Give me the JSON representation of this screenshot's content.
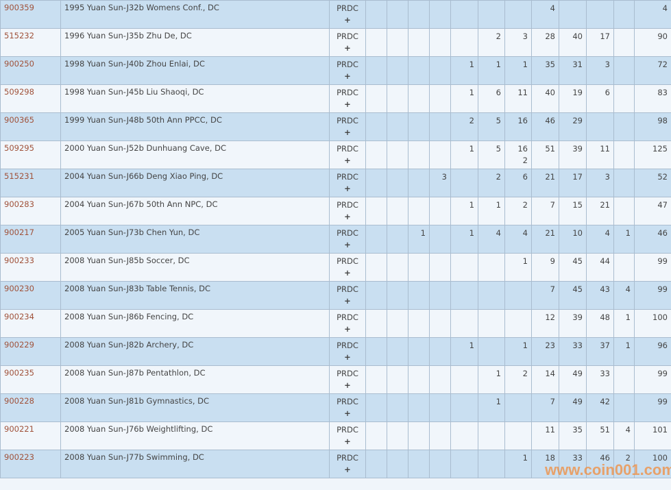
{
  "grade_label": "PRDC",
  "expand_label": "+",
  "watermark": "www.coin001.com",
  "rows": [
    {
      "id": "900359",
      "name": "1995 Yuan Sun-J32b Womens Conf., DC",
      "counts": [
        "",
        "",
        "",
        "",
        "",
        "",
        "",
        "4",
        "",
        "",
        ""
      ],
      "total": "4"
    },
    {
      "id": "515232",
      "name": "1996 Yuan Sun-J35b Zhu De, DC",
      "counts": [
        "",
        "",
        "",
        "",
        "",
        "2",
        "3",
        "28",
        "40",
        "17",
        ""
      ],
      "total": "90"
    },
    {
      "id": "900250",
      "name": "1998 Yuan Sun-J40b Zhou Enlai, DC",
      "counts": [
        "",
        "",
        "",
        "",
        "1",
        "1",
        "1",
        "35",
        "31",
        "3",
        ""
      ],
      "total": "72"
    },
    {
      "id": "509298",
      "name": "1998 Yuan Sun-J45b Liu Shaoqi, DC",
      "counts": [
        "",
        "",
        "",
        "",
        "1",
        "6",
        "11",
        "40",
        "19",
        "6",
        ""
      ],
      "total": "83"
    },
    {
      "id": "900365",
      "name": "1999 Yuan Sun-J48b 50th Ann PPCC, DC",
      "counts": [
        "",
        "",
        "",
        "",
        "2",
        "5",
        "16",
        "46",
        "29",
        "",
        ""
      ],
      "total": "98"
    },
    {
      "id": "509295",
      "name": "2000 Yuan Sun-J52b Dunhuang Cave, DC",
      "counts": [
        "",
        "",
        "",
        "",
        "1",
        "5",
        "16\n2",
        "51",
        "39",
        "11",
        ""
      ],
      "total": "125"
    },
    {
      "id": "515231",
      "name": "2004 Yuan Sun-J66b Deng Xiao Ping, DC",
      "counts": [
        "",
        "",
        "",
        "3",
        "",
        "2",
        "6",
        "21",
        "17",
        "3",
        ""
      ],
      "total": "52"
    },
    {
      "id": "900283",
      "name": "2004 Yuan Sun-J67b 50th Ann NPC, DC",
      "counts": [
        "",
        "",
        "",
        "",
        "1",
        "1",
        "2",
        "7",
        "15",
        "21",
        ""
      ],
      "total": "47"
    },
    {
      "id": "900217",
      "name": "2005 Yuan Sun-J73b Chen Yun, DC",
      "counts": [
        "",
        "",
        "1",
        "",
        "1",
        "4",
        "4",
        "21",
        "10",
        "4",
        "1"
      ],
      "total": "46"
    },
    {
      "id": "900233",
      "name": "2008 Yuan Sun-J85b Soccer, DC",
      "counts": [
        "",
        "",
        "",
        "",
        "",
        "",
        "1",
        "9",
        "45",
        "44",
        ""
      ],
      "total": "99"
    },
    {
      "id": "900230",
      "name": "2008 Yuan Sun-J83b Table Tennis, DC",
      "counts": [
        "",
        "",
        "",
        "",
        "",
        "",
        "",
        "7",
        "45",
        "43",
        "4"
      ],
      "total": "99"
    },
    {
      "id": "900234",
      "name": "2008 Yuan Sun-J86b Fencing, DC",
      "counts": [
        "",
        "",
        "",
        "",
        "",
        "",
        "",
        "12",
        "39",
        "48",
        "1"
      ],
      "total": "100"
    },
    {
      "id": "900229",
      "name": "2008 Yuan Sun-J82b Archery, DC",
      "counts": [
        "",
        "",
        "",
        "",
        "1",
        "",
        "1",
        "23",
        "33",
        "37",
        "1"
      ],
      "total": "96"
    },
    {
      "id": "900235",
      "name": "2008 Yuan Sun-J87b Pentathlon, DC",
      "counts": [
        "",
        "",
        "",
        "",
        "",
        "1",
        "2",
        "14",
        "49",
        "33",
        ""
      ],
      "total": "99"
    },
    {
      "id": "900228",
      "name": "2008 Yuan Sun-J81b Gymnastics, DC",
      "counts": [
        "",
        "",
        "",
        "",
        "",
        "1",
        "",
        "7",
        "49",
        "42",
        ""
      ],
      "total": "99"
    },
    {
      "id": "900221",
      "name": "2008 Yuan Sun-J76b Weightlifting, DC",
      "counts": [
        "",
        "",
        "",
        "",
        "",
        "",
        "",
        "11",
        "35",
        "51",
        "4"
      ],
      "total": "101"
    },
    {
      "id": "900223",
      "name": "2008 Yuan Sun-J77b Swimming, DC",
      "counts": [
        "",
        "",
        "",
        "",
        "",
        "",
        "1",
        "18",
        "33",
        "46",
        "2"
      ],
      "total": "100"
    }
  ]
}
